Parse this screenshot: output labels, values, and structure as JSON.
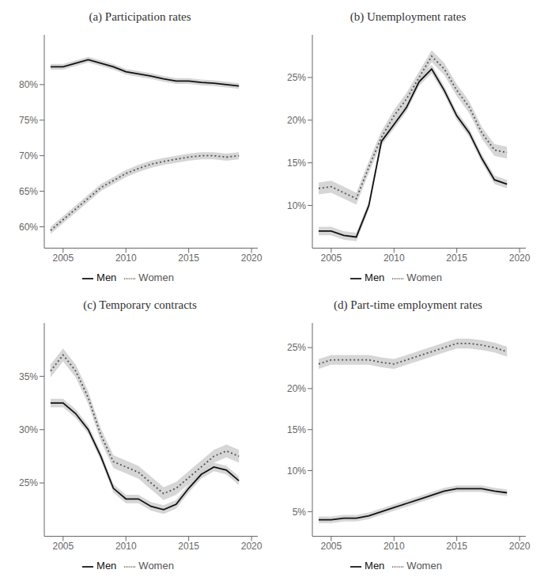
{
  "chart_data": [
    {
      "type": "line",
      "title": "(a)  Participation rates",
      "x": [
        2004,
        2005,
        2006,
        2007,
        2008,
        2009,
        2010,
        2011,
        2012,
        2013,
        2014,
        2015,
        2016,
        2017,
        2018,
        2019
      ],
      "xlim": [
        2003.5,
        2020.5
      ],
      "xticks": [
        2005,
        2010,
        2015,
        2020
      ],
      "ylim": [
        57,
        87
      ],
      "yticks": [
        {
          "value": 60,
          "label": "60%"
        },
        {
          "value": 65,
          "label": "65%"
        },
        {
          "value": 70,
          "label": "70%"
        },
        {
          "value": 75,
          "label": "75%"
        },
        {
          "value": 80,
          "label": "80%"
        }
      ],
      "grid": false,
      "legend": "bottom",
      "series": [
        {
          "name": "Men",
          "color": "#111111",
          "line_style": "solid",
          "values": [
            82.5,
            82.5,
            83.0,
            83.5,
            83.0,
            82.5,
            81.8,
            81.5,
            81.2,
            80.8,
            80.5,
            80.5,
            80.3,
            80.2,
            80.0,
            79.8
          ],
          "band": {
            "color": "#cccccc",
            "lower": [
              82.1,
              82.1,
              82.6,
              83.1,
              82.6,
              82.1,
              81.4,
              81.1,
              80.8,
              80.4,
              80.1,
              80.1,
              79.9,
              79.8,
              79.6,
              79.4
            ],
            "upper": [
              82.9,
              82.9,
              83.4,
              83.9,
              83.4,
              82.9,
              82.2,
              81.9,
              81.6,
              81.2,
              80.9,
              80.9,
              80.7,
              80.6,
              80.4,
              80.2
            ]
          }
        },
        {
          "name": "Women",
          "color": "#555555",
          "line_style": "dotted",
          "values": [
            59.5,
            61.0,
            62.5,
            64.0,
            65.5,
            66.5,
            67.5,
            68.2,
            68.8,
            69.2,
            69.5,
            69.8,
            70.0,
            70.0,
            69.8,
            70.0
          ],
          "band": {
            "color": "#cccccc",
            "lower": [
              59.0,
              60.5,
              62.0,
              63.5,
              65.0,
              66.0,
              67.0,
              67.7,
              68.3,
              68.7,
              69.0,
              69.3,
              69.5,
              69.5,
              69.3,
              69.5
            ],
            "upper": [
              60.0,
              61.5,
              63.0,
              64.5,
              66.0,
              67.0,
              68.0,
              68.7,
              69.3,
              69.7,
              70.0,
              70.3,
              70.5,
              70.5,
              70.3,
              70.5
            ]
          }
        }
      ]
    },
    {
      "type": "line",
      "title": "(b)  Unemployment rates",
      "x": [
        2004,
        2005,
        2006,
        2007,
        2008,
        2009,
        2010,
        2011,
        2012,
        2013,
        2014,
        2015,
        2016,
        2017,
        2018,
        2019
      ],
      "xlim": [
        2003.5,
        2020.5
      ],
      "xticks": [
        2005,
        2010,
        2015,
        2020
      ],
      "ylim": [
        5,
        30
      ],
      "yticks": [
        {
          "value": 10,
          "label": "10%"
        },
        {
          "value": 15,
          "label": "15%"
        },
        {
          "value": 20,
          "label": "20%"
        },
        {
          "value": 25,
          "label": "25%"
        }
      ],
      "grid": false,
      "legend": "bottom",
      "series": [
        {
          "name": "Men",
          "color": "#111111",
          "line_style": "solid",
          "values": [
            7.0,
            7.0,
            6.5,
            6.3,
            10.0,
            17.5,
            19.5,
            21.5,
            24.5,
            26.0,
            23.5,
            20.5,
            18.5,
            15.5,
            13.0,
            12.5
          ],
          "band": {
            "color": "#cccccc",
            "lower": [
              6.5,
              6.5,
              6.0,
              5.8,
              9.5,
              17.0,
              19.0,
              21.0,
              24.0,
              25.5,
              23.0,
              20.0,
              18.0,
              15.0,
              12.5,
              12.0
            ],
            "upper": [
              7.5,
              7.5,
              7.0,
              6.8,
              10.5,
              18.0,
              20.0,
              22.0,
              25.0,
              26.5,
              24.0,
              21.0,
              19.0,
              16.0,
              13.5,
              13.0
            ]
          }
        },
        {
          "name": "Women",
          "color": "#555555",
          "line_style": "dotted",
          "values": [
            12.0,
            12.2,
            11.5,
            10.8,
            14.5,
            18.0,
            20.5,
            22.5,
            25.0,
            27.5,
            26.0,
            23.5,
            21.5,
            18.5,
            16.5,
            16.2
          ],
          "band": {
            "color": "#cccccc",
            "lower": [
              11.3,
              11.5,
              10.8,
              10.1,
              13.8,
              17.3,
              19.8,
              21.8,
              24.3,
              26.8,
              25.3,
              22.8,
              20.8,
              17.8,
              15.8,
              15.5
            ],
            "upper": [
              12.7,
              12.9,
              12.2,
              11.5,
              15.2,
              18.7,
              21.2,
              23.2,
              25.7,
              28.2,
              26.7,
              24.2,
              22.2,
              19.2,
              17.2,
              16.9
            ]
          }
        }
      ]
    },
    {
      "type": "line",
      "title": "(c)  Temporary contracts",
      "x": [
        2004,
        2005,
        2006,
        2007,
        2008,
        2009,
        2010,
        2011,
        2012,
        2013,
        2014,
        2015,
        2016,
        2017,
        2018,
        2019
      ],
      "xlim": [
        2003.5,
        2020.5
      ],
      "xticks": [
        2005,
        2010,
        2015,
        2020
      ],
      "ylim": [
        20,
        40
      ],
      "yticks": [
        {
          "value": 25,
          "label": "25%"
        },
        {
          "value": 30,
          "label": "30%"
        },
        {
          "value": 35,
          "label": "35%"
        }
      ],
      "grid": false,
      "legend": "bottom",
      "series": [
        {
          "name": "Men",
          "color": "#111111",
          "line_style": "solid",
          "values": [
            32.5,
            32.5,
            31.5,
            30.0,
            27.5,
            24.5,
            23.5,
            23.5,
            22.8,
            22.5,
            23.0,
            24.5,
            25.8,
            26.5,
            26.2,
            25.2
          ],
          "band": {
            "color": "#cccccc",
            "lower": [
              32.1,
              32.1,
              31.1,
              29.6,
              27.1,
              24.1,
              23.1,
              23.1,
              22.4,
              22.1,
              22.6,
              24.1,
              25.4,
              26.1,
              25.8,
              24.8
            ],
            "upper": [
              32.9,
              32.9,
              31.9,
              30.4,
              27.9,
              24.9,
              23.9,
              23.9,
              23.2,
              22.9,
              23.4,
              24.9,
              26.2,
              26.9,
              26.6,
              25.6
            ]
          }
        },
        {
          "name": "Women",
          "color": "#555555",
          "line_style": "dotted",
          "values": [
            35.5,
            37.0,
            35.5,
            33.0,
            29.5,
            27.0,
            26.5,
            26.0,
            25.0,
            24.0,
            24.5,
            25.5,
            26.5,
            27.5,
            28.0,
            27.5
          ],
          "band": {
            "color": "#cccccc",
            "lower": [
              34.9,
              36.4,
              34.9,
              32.4,
              28.9,
              26.4,
              25.9,
              25.4,
              24.4,
              23.4,
              23.9,
              24.9,
              25.9,
              26.9,
              27.4,
              26.9
            ],
            "upper": [
              36.1,
              37.6,
              36.1,
              33.6,
              30.1,
              27.6,
              27.1,
              26.6,
              25.6,
              24.6,
              25.1,
              26.1,
              27.1,
              28.1,
              28.6,
              28.1
            ]
          }
        }
      ]
    },
    {
      "type": "line",
      "title": "(d)  Part-time employment rates",
      "x": [
        2004,
        2005,
        2006,
        2007,
        2008,
        2009,
        2010,
        2011,
        2012,
        2013,
        2014,
        2015,
        2016,
        2017,
        2018,
        2019
      ],
      "xlim": [
        2003.5,
        2020.5
      ],
      "xticks": [
        2005,
        2010,
        2015,
        2020
      ],
      "ylim": [
        2,
        28
      ],
      "yticks": [
        {
          "value": 5,
          "label": "5%"
        },
        {
          "value": 10,
          "label": "10%"
        },
        {
          "value": 15,
          "label": "15%"
        },
        {
          "value": 20,
          "label": "20%"
        },
        {
          "value": 25,
          "label": "25%"
        }
      ],
      "grid": false,
      "legend": "bottom",
      "series": [
        {
          "name": "Men",
          "color": "#111111",
          "line_style": "solid",
          "values": [
            4.0,
            4.0,
            4.2,
            4.2,
            4.5,
            5.0,
            5.5,
            6.0,
            6.5,
            7.0,
            7.5,
            7.8,
            7.8,
            7.8,
            7.5,
            7.3
          ],
          "band": {
            "color": "#cccccc",
            "lower": [
              3.6,
              3.6,
              3.8,
              3.8,
              4.1,
              4.6,
              5.1,
              5.6,
              6.1,
              6.6,
              7.1,
              7.4,
              7.4,
              7.4,
              7.1,
              6.9
            ],
            "upper": [
              4.4,
              4.4,
              4.6,
              4.6,
              4.9,
              5.4,
              5.9,
              6.4,
              6.9,
              7.4,
              7.9,
              8.2,
              8.2,
              8.2,
              7.9,
              7.7
            ]
          }
        },
        {
          "name": "Women",
          "color": "#555555",
          "line_style": "dotted",
          "values": [
            23.0,
            23.5,
            23.5,
            23.5,
            23.5,
            23.2,
            23.0,
            23.5,
            24.0,
            24.5,
            25.0,
            25.5,
            25.5,
            25.3,
            25.0,
            24.5
          ],
          "band": {
            "color": "#cccccc",
            "lower": [
              22.4,
              22.9,
              22.9,
              22.9,
              22.9,
              22.6,
              22.4,
              22.9,
              23.4,
              23.9,
              24.4,
              24.9,
              24.9,
              24.7,
              24.4,
              23.9
            ],
            "upper": [
              23.6,
              24.1,
              24.1,
              24.1,
              24.1,
              23.8,
              23.6,
              24.1,
              24.6,
              25.1,
              25.6,
              26.1,
              26.1,
              25.9,
              25.6,
              25.1
            ]
          }
        }
      ]
    }
  ]
}
